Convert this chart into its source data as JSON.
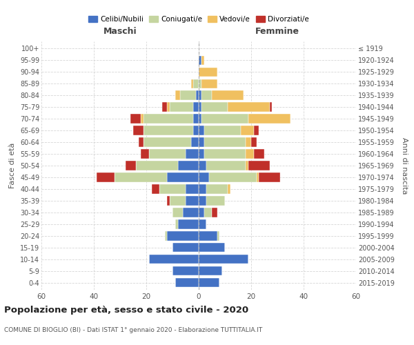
{
  "age_groups": [
    "0-4",
    "5-9",
    "10-14",
    "15-19",
    "20-24",
    "25-29",
    "30-34",
    "35-39",
    "40-44",
    "45-49",
    "50-54",
    "55-59",
    "60-64",
    "65-69",
    "70-74",
    "75-79",
    "80-84",
    "85-89",
    "90-94",
    "95-99",
    "100+"
  ],
  "birth_years": [
    "2015-2019",
    "2010-2014",
    "2005-2009",
    "2000-2004",
    "1995-1999",
    "1990-1994",
    "1985-1989",
    "1980-1984",
    "1975-1979",
    "1970-1974",
    "1965-1969",
    "1960-1964",
    "1955-1959",
    "1950-1954",
    "1945-1949",
    "1940-1944",
    "1935-1939",
    "1930-1934",
    "1925-1929",
    "1920-1924",
    "≤ 1919"
  ],
  "maschi": {
    "celibi": [
      9,
      10,
      19,
      10,
      12,
      8,
      6,
      5,
      5,
      12,
      8,
      5,
      3,
      2,
      2,
      2,
      1,
      0,
      0,
      0,
      0
    ],
    "coniugati": [
      0,
      0,
      0,
      0,
      1,
      1,
      4,
      6,
      10,
      20,
      16,
      14,
      18,
      19,
      19,
      9,
      6,
      2,
      0,
      0,
      0
    ],
    "vedovi": [
      0,
      0,
      0,
      0,
      0,
      0,
      0,
      0,
      0,
      0,
      0,
      0,
      0,
      0,
      1,
      1,
      2,
      1,
      0,
      0,
      0
    ],
    "divorziati": [
      0,
      0,
      0,
      0,
      0,
      0,
      0,
      1,
      3,
      7,
      4,
      3,
      2,
      4,
      4,
      2,
      0,
      0,
      0,
      0,
      0
    ]
  },
  "femmine": {
    "nubili": [
      8,
      9,
      19,
      10,
      7,
      3,
      2,
      3,
      3,
      4,
      3,
      2,
      2,
      2,
      1,
      1,
      1,
      0,
      0,
      1,
      0
    ],
    "coniugate": [
      0,
      0,
      0,
      0,
      1,
      0,
      3,
      7,
      8,
      18,
      15,
      16,
      16,
      14,
      18,
      10,
      4,
      1,
      0,
      0,
      0
    ],
    "vedove": [
      0,
      0,
      0,
      0,
      0,
      0,
      0,
      0,
      1,
      1,
      1,
      3,
      2,
      5,
      16,
      16,
      12,
      6,
      7,
      1,
      0
    ],
    "divorziate": [
      0,
      0,
      0,
      0,
      0,
      0,
      2,
      0,
      0,
      8,
      8,
      4,
      2,
      2,
      0,
      1,
      0,
      0,
      0,
      0,
      0
    ]
  },
  "colors": {
    "celibi": "#4472c4",
    "coniugati": "#c5d5a0",
    "vedovi": "#f0c060",
    "divorziati": "#c0302a"
  },
  "title": "Popolazione per età, sesso e stato civile - 2020",
  "subtitle": "COMUNE DI BIOGLIO (BI) - Dati ISTAT 1° gennaio 2020 - Elaborazione TUTTITALIA.IT",
  "xlabel_left": "Maschi",
  "xlabel_right": "Femmine",
  "ylabel_left": "Fasce di età",
  "ylabel_right": "Anni di nascita",
  "xlim": 60,
  "background_color": "#ffffff",
  "grid_color": "#cccccc"
}
